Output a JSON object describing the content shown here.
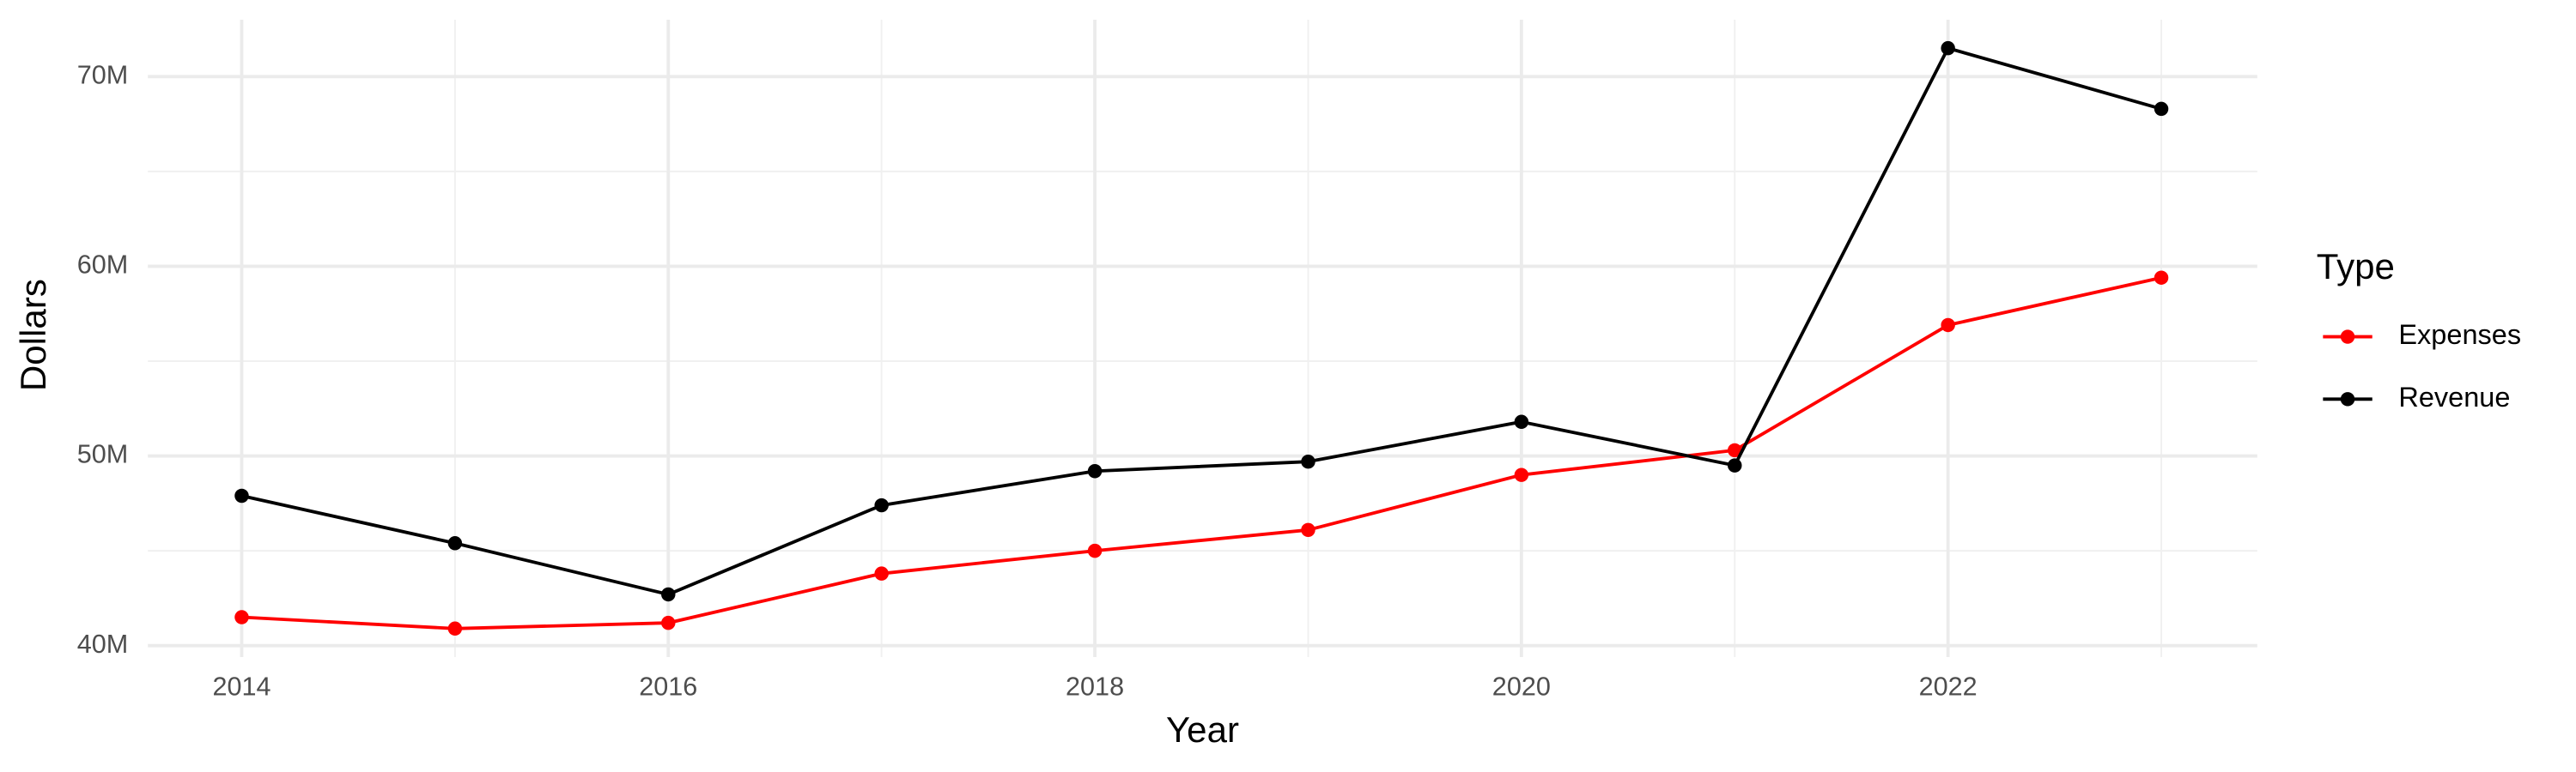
{
  "chart_data": {
    "type": "line",
    "x_label": "Year",
    "y_label": "Dollars",
    "legend_title": "Type",
    "x": [
      2014,
      2015,
      2016,
      2017,
      2018,
      2019,
      2020,
      2021,
      2022,
      2023
    ],
    "series": [
      {
        "name": "Expenses",
        "color": "#ff0000",
        "values": [
          41500000,
          40900000,
          41200000,
          43800000,
          45000000,
          46100000,
          49000000,
          50300000,
          56900000,
          59400000
        ]
      },
      {
        "name": "Revenue",
        "color": "#000000",
        "values": [
          47900000,
          45400000,
          42700000,
          47400000,
          49200000,
          49700000,
          51800000,
          49500000,
          71500000,
          68300000
        ]
      }
    ],
    "xlim": [
      2013.56,
      2023.45
    ],
    "xticks": [
      2014,
      2016,
      2018,
      2020,
      2022
    ],
    "ylim": [
      39400000,
      73000000
    ],
    "yticks": [
      {
        "value": 40000000,
        "label": "40M"
      },
      {
        "value": 50000000,
        "label": "50M"
      },
      {
        "value": 60000000,
        "label": "60M"
      },
      {
        "value": 70000000,
        "label": "70M"
      }
    ],
    "grid": true,
    "legend": "right"
  }
}
